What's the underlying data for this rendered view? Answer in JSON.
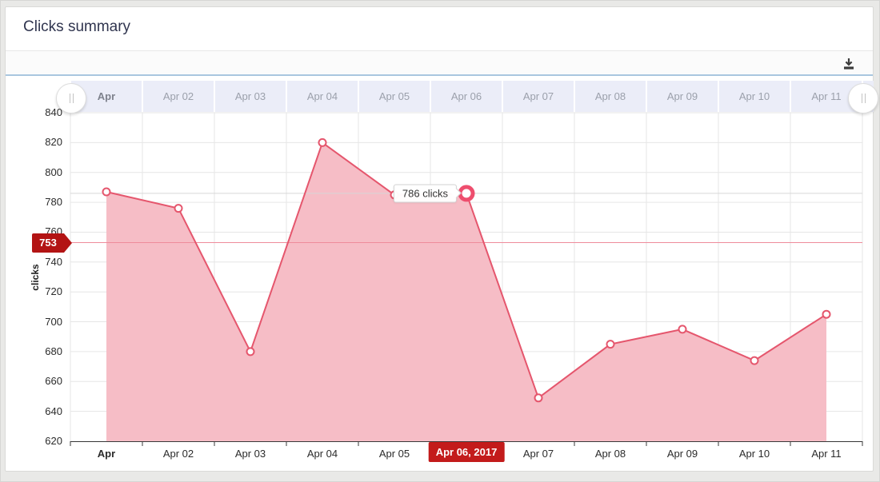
{
  "window": {
    "title": "Clicks summary"
  },
  "toolbar": {
    "buttons": [
      {
        "name": "download",
        "icon": "download-icon"
      }
    ]
  },
  "chart_data": {
    "type": "area",
    "title": "Clicks summary",
    "xlabel": "",
    "ylabel": "clicks",
    "categories": [
      "Apr",
      "Apr 02",
      "Apr 03",
      "Apr 04",
      "Apr 05",
      "Apr 06",
      "Apr 07",
      "Apr 08",
      "Apr 09",
      "Apr 10",
      "Apr 11"
    ],
    "values": [
      787,
      776,
      680,
      820,
      785,
      786,
      649,
      685,
      695,
      674,
      705
    ],
    "ylim": [
      620,
      840
    ],
    "y_ticks": [
      620,
      640,
      660,
      680,
      700,
      720,
      740,
      760,
      780,
      800,
      820,
      840
    ],
    "grid": true,
    "legend": false,
    "navigator_labels": [
      "Apr",
      "Apr 02",
      "Apr 03",
      "Apr 04",
      "Apr 05",
      "Apr 06",
      "Apr 07",
      "Apr 08",
      "Apr 09",
      "Apr 10",
      "Apr 11"
    ],
    "navigator_handle_glyph": "||",
    "selected": {
      "index": 5,
      "x_label": "Apr 06, 2017",
      "tooltip": "786 clicks"
    },
    "plotline": {
      "value": 753,
      "label": "753"
    },
    "colors": {
      "accent_line": "#e5566d",
      "area_fill": "#f6bdc6",
      "selected_ring": "#ee4e6e",
      "grid": "#e6e6e6",
      "axis": "#3a3a3a",
      "plotline": "#ef8b9b",
      "crosshair": "#d6d6d6",
      "value_badge_bg": "#b31414",
      "date_badge_bg": "#c31b1b",
      "navigator_band": "#ebedf8",
      "toolbar_border": "#a9c6df"
    }
  }
}
